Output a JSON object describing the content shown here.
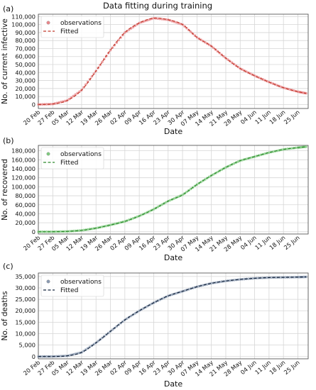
{
  "figure_title": "Data fitting during training",
  "chart_data": [
    {
      "type": "scatter",
      "panel_label": "(a)",
      "xlabel": "Date",
      "ylabel": "No. of current infective",
      "x_ticks": [
        "20 Feb",
        "27 Feb",
        "05 Mar",
        "12 Mar",
        "19 Mar",
        "26 Mar",
        "02 Apr",
        "09 Apr",
        "16 Apr",
        "23 Apr",
        "30 Apr",
        "07 May",
        "14 May",
        "21 May",
        "28 May",
        "04 Jun",
        "11 Jun",
        "18 Jun",
        "25 Jun"
      ],
      "y_ticks": [
        "0",
        "10,000",
        "20,000",
        "30,000",
        "40,000",
        "50,000",
        "60,000",
        "70,000",
        "80,000",
        "90,000",
        "100,000",
        "110,000"
      ],
      "ylim": [
        -5000,
        113000
      ],
      "grid": true,
      "legend_position": "top-left",
      "obs_color": "#e8868a",
      "fit_color": "#c0392b",
      "series": [
        {
          "name": "observations",
          "kind": "points",
          "x": [
            "20 Feb",
            "27 Feb",
            "05 Mar",
            "12 Mar",
            "19 Mar",
            "26 Mar",
            "02 Apr",
            "09 Apr",
            "16 Apr",
            "23 Apr",
            "30 Apr",
            "07 May",
            "14 May",
            "21 May",
            "28 May",
            "04 Jun",
            "11 Jun",
            "18 Jun",
            "25 Jun",
            "29 Jun"
          ],
          "values": [
            3,
            600,
            5000,
            18000,
            42000,
            68000,
            90000,
            102000,
            108000,
            106000,
            100000,
            84000,
            73000,
            58000,
            45000,
            36000,
            28000,
            21000,
            16000,
            14000
          ]
        },
        {
          "name": "Fitted",
          "kind": "dashed-line",
          "x": [
            "20 Feb",
            "27 Feb",
            "05 Mar",
            "12 Mar",
            "19 Mar",
            "26 Mar",
            "02 Apr",
            "09 Apr",
            "16 Apr",
            "23 Apr",
            "30 Apr",
            "07 May",
            "14 May",
            "21 May",
            "28 May",
            "04 Jun",
            "11 Jun",
            "18 Jun",
            "25 Jun",
            "29 Jun"
          ],
          "values": [
            3,
            600,
            5000,
            18000,
            42000,
            68000,
            90000,
            102000,
            108000,
            106000,
            100000,
            84000,
            73000,
            58000,
            45000,
            36000,
            28000,
            21000,
            16000,
            14000
          ]
        }
      ]
    },
    {
      "type": "scatter",
      "panel_label": "(b)",
      "xlabel": "Date",
      "ylabel": "No. of recovered",
      "x_ticks": [
        "20 Feb",
        "27 Feb",
        "05 Mar",
        "12 Mar",
        "19 Mar",
        "26 Mar",
        "02 Apr",
        "09 Apr",
        "16 Apr",
        "23 Apr",
        "30 Apr",
        "07 May",
        "14 May",
        "21 May",
        "28 May",
        "04 Jun",
        "11 Jun",
        "18 Jun",
        "25 Jun"
      ],
      "y_ticks": [
        "0",
        "20,000",
        "40,000",
        "60,000",
        "80,000",
        "100,000",
        "120,000",
        "140,000",
        "160,000",
        "180,000"
      ],
      "ylim": [
        -5000,
        192000
      ],
      "grid": true,
      "legend_position": "top-left",
      "obs_color": "#7fc97f",
      "fit_color": "#2e8b2e",
      "series": [
        {
          "name": "observations",
          "kind": "points",
          "x": [
            "20 Feb",
            "27 Feb",
            "05 Mar",
            "12 Mar",
            "19 Mar",
            "26 Mar",
            "02 Apr",
            "09 Apr",
            "16 Apr",
            "23 Apr",
            "30 Apr",
            "07 May",
            "14 May",
            "21 May",
            "28 May",
            "04 Jun",
            "11 Jun",
            "18 Jun",
            "25 Jun",
            "29 Jun"
          ],
          "values": [
            0,
            100,
            800,
            3000,
            8000,
            15000,
            23000,
            35000,
            50000,
            68000,
            82000,
            105000,
            125000,
            143000,
            158000,
            167000,
            176000,
            183000,
            187000,
            189000
          ]
        },
        {
          "name": "Fitted",
          "kind": "dashed-line",
          "x": [
            "20 Feb",
            "27 Feb",
            "05 Mar",
            "12 Mar",
            "19 Mar",
            "26 Mar",
            "02 Apr",
            "09 Apr",
            "16 Apr",
            "23 Apr",
            "30 Apr",
            "07 May",
            "14 May",
            "21 May",
            "28 May",
            "04 Jun",
            "11 Jun",
            "18 Jun",
            "25 Jun",
            "29 Jun"
          ],
          "values": [
            0,
            100,
            800,
            3000,
            8000,
            15000,
            23000,
            35000,
            50000,
            68000,
            82000,
            105000,
            125000,
            143000,
            158000,
            167000,
            176000,
            183000,
            187000,
            189000
          ]
        }
      ]
    },
    {
      "type": "scatter",
      "panel_label": "(c)",
      "xlabel": "Date",
      "ylabel": "No. of deaths",
      "x_ticks": [
        "20 Feb",
        "27 Feb",
        "05 Mar",
        "12 Mar",
        "19 Mar",
        "26 Mar",
        "02 Apr",
        "09 Apr",
        "16 Apr",
        "23 Apr",
        "30 Apr",
        "07 May",
        "14 May",
        "21 May",
        "28 May",
        "04 Jun",
        "11 Jun",
        "18 Jun",
        "25 Jun"
      ],
      "y_ticks": [
        "0",
        "5,000",
        "10,000",
        "15,000",
        "20,000",
        "25,000",
        "30,000",
        "35,000"
      ],
      "ylim": [
        -1000,
        36500
      ],
      "grid": true,
      "legend_position": "top-left",
      "obs_color": "#8a9ab0",
      "fit_color": "#15253d",
      "series": [
        {
          "name": "observations",
          "kind": "points",
          "x": [
            "20 Feb",
            "27 Feb",
            "05 Mar",
            "12 Mar",
            "19 Mar",
            "26 Mar",
            "02 Apr",
            "09 Apr",
            "16 Apr",
            "23 Apr",
            "30 Apr",
            "07 May",
            "14 May",
            "21 May",
            "28 May",
            "04 Jun",
            "11 Jun",
            "18 Jun",
            "25 Jun",
            "29 Jun"
          ],
          "values": [
            0,
            30,
            300,
            1800,
            6000,
            11000,
            16000,
            20000,
            23500,
            26500,
            28500,
            30500,
            32000,
            33000,
            33700,
            34200,
            34500,
            34600,
            34700,
            34800
          ]
        },
        {
          "name": "Fitted",
          "kind": "dashed-line",
          "x": [
            "20 Feb",
            "27 Feb",
            "05 Mar",
            "12 Mar",
            "19 Mar",
            "26 Mar",
            "02 Apr",
            "09 Apr",
            "16 Apr",
            "23 Apr",
            "30 Apr",
            "07 May",
            "14 May",
            "21 May",
            "28 May",
            "04 Jun",
            "11 Jun",
            "18 Jun",
            "25 Jun",
            "29 Jun"
          ],
          "values": [
            0,
            30,
            300,
            1800,
            6000,
            11000,
            16000,
            20000,
            23500,
            26500,
            28500,
            30500,
            32000,
            33000,
            33700,
            34200,
            34500,
            34600,
            34700,
            34800
          ]
        }
      ]
    }
  ]
}
